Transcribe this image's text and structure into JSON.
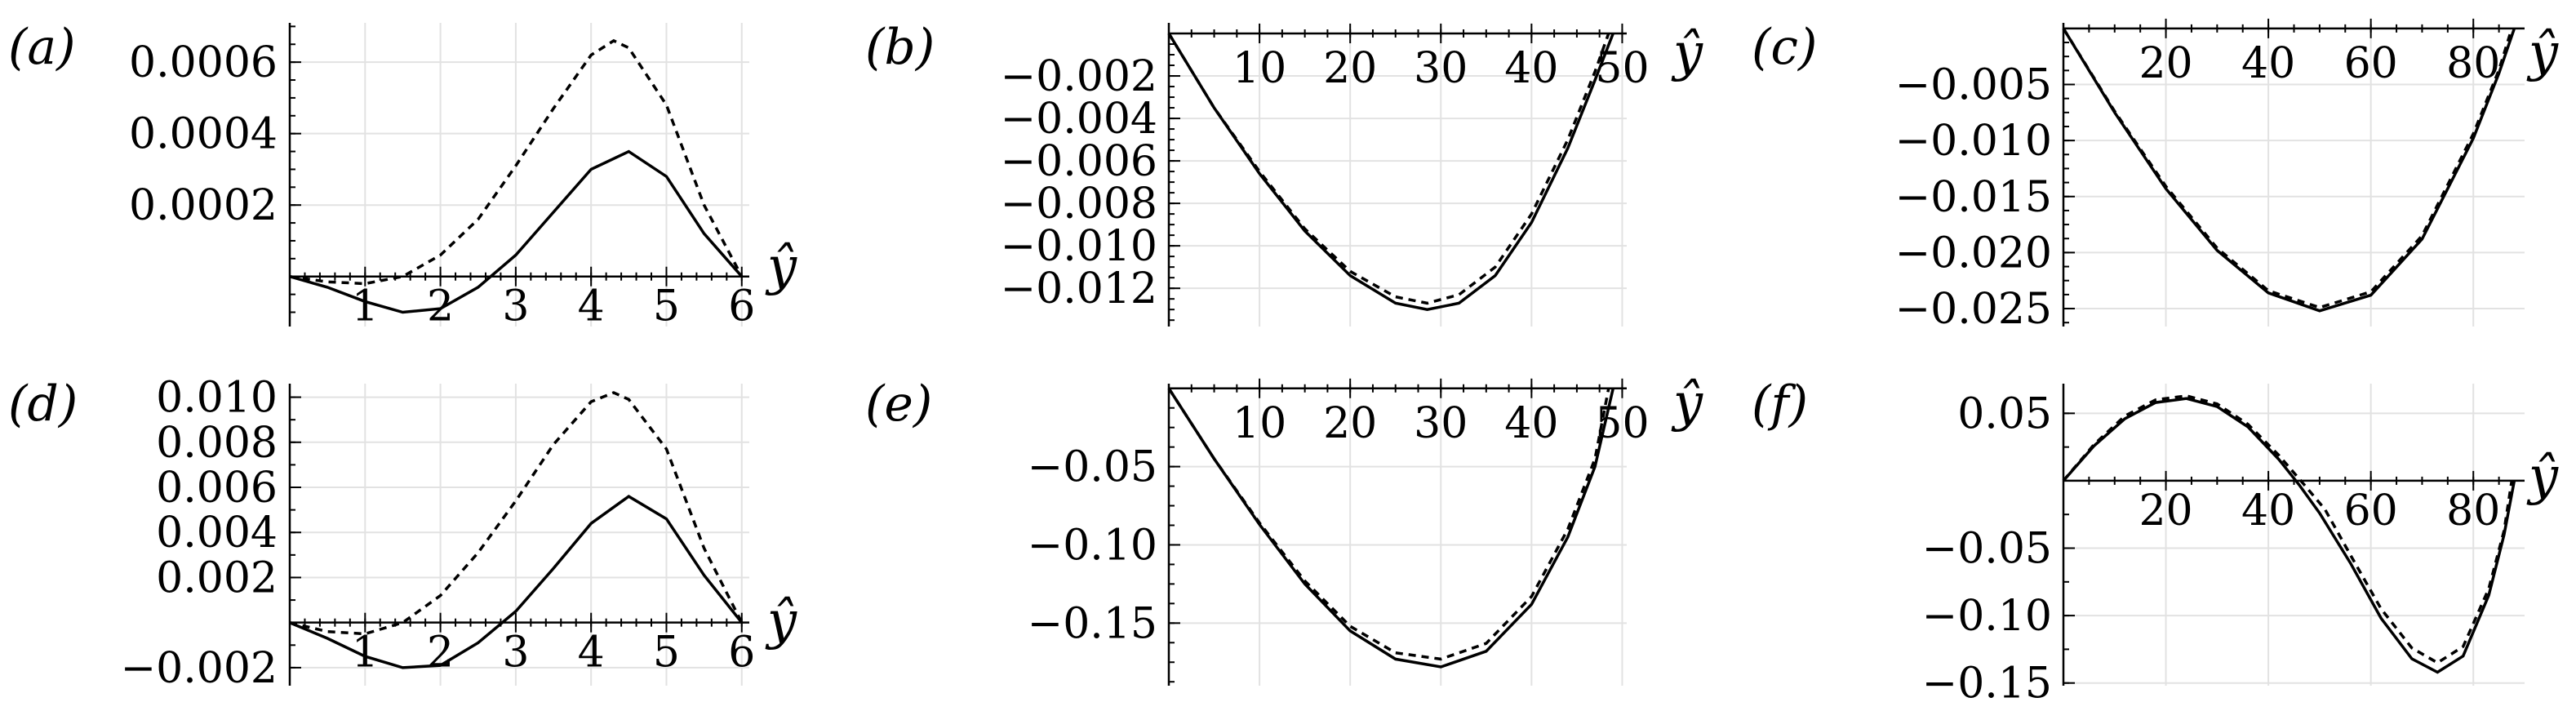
{
  "chart_data": [
    {
      "type": "line",
      "panel_label": "(a)",
      "xlabel": "ŷ",
      "x_ticks": [
        1,
        2,
        3,
        4,
        5,
        6
      ],
      "x_tick_labels": [
        "1",
        "2",
        "3",
        "4",
        "5",
        "6"
      ],
      "y_ticks": [
        0.0002,
        0.0004,
        0.0006
      ],
      "y_tick_labels": [
        "0.0002",
        "0.0004",
        "0.0006"
      ],
      "xlim": [
        0,
        6.1
      ],
      "ylim": [
        -0.00014,
        0.00071
      ],
      "grid": true,
      "series": [
        {
          "style": "solid",
          "x": [
            0,
            0.5,
            1,
            1.5,
            2,
            2.5,
            3,
            3.5,
            4,
            4.5,
            5,
            5.5,
            6
          ],
          "y": [
            0,
            -3e-05,
            -7e-05,
            -0.0001,
            -9e-05,
            -3e-05,
            6e-05,
            0.00018,
            0.0003,
            0.00035,
            0.00028,
            0.00012,
            0
          ]
        },
        {
          "style": "dashed",
          "x": [
            0,
            0.5,
            1,
            1.5,
            2,
            2.5,
            3,
            3.5,
            4,
            4.3,
            4.5,
            5,
            5.5,
            6
          ],
          "y": [
            0,
            -1.5e-05,
            -2e-05,
            0,
            6e-05,
            0.00016,
            0.00031,
            0.00047,
            0.00062,
            0.00066,
            0.00064,
            0.00048,
            0.0002,
            0
          ]
        }
      ]
    },
    {
      "type": "line",
      "panel_label": "(b)",
      "xlabel": "ŷ",
      "x_ticks": [
        10,
        20,
        30,
        40,
        50
      ],
      "x_tick_labels": [
        "10",
        "20",
        "30",
        "40",
        "50"
      ],
      "y_ticks": [
        -0.002,
        -0.004,
        -0.006,
        -0.008,
        -0.01,
        -0.012
      ],
      "y_tick_labels": [
        "−0.002",
        "−0.004",
        "−0.006",
        "−0.008",
        "−0.010",
        "−0.012"
      ],
      "xlim": [
        0,
        50.5
      ],
      "ylim": [
        -0.0138,
        0.0005
      ],
      "grid": true,
      "series": [
        {
          "style": "solid",
          "x": [
            0,
            5,
            10,
            15,
            20,
            25,
            28.5,
            32,
            36,
            40,
            44,
            47,
            49
          ],
          "y": [
            0,
            -0.0035,
            -0.0066,
            -0.0093,
            -0.0114,
            -0.0127,
            -0.013,
            -0.0127,
            -0.0114,
            -0.0089,
            -0.0054,
            -0.0022,
            0
          ]
        },
        {
          "style": "dashed",
          "x": [
            0,
            5,
            10,
            15,
            20,
            25,
            28.5,
            32,
            36,
            40,
            44,
            47,
            48.5
          ],
          "y": [
            0,
            -0.0035,
            -0.0065,
            -0.0092,
            -0.0112,
            -0.0124,
            -0.0127,
            -0.0123,
            -0.011,
            -0.0085,
            -0.005,
            -0.0018,
            0
          ]
        }
      ]
    },
    {
      "type": "line",
      "panel_label": "(c)",
      "xlabel": "ŷ",
      "x_ticks": [
        20,
        40,
        60,
        80
      ],
      "x_tick_labels": [
        "20",
        "40",
        "60",
        "80"
      ],
      "y_ticks": [
        -0.005,
        -0.01,
        -0.015,
        -0.02,
        -0.025
      ],
      "y_tick_labels": [
        "−0.005",
        "−0.010",
        "−0.015",
        "−0.020",
        "−0.025"
      ],
      "xlim": [
        0,
        90
      ],
      "ylim": [
        -0.0266,
        0.0005
      ],
      "grid": true,
      "series": [
        {
          "style": "solid",
          "x": [
            0,
            10,
            20,
            30,
            40,
            50,
            60,
            70,
            80,
            85,
            88
          ],
          "y": [
            0,
            -0.0075,
            -0.0143,
            -0.0198,
            -0.0236,
            -0.0252,
            -0.0238,
            -0.0188,
            -0.0098,
            -0.004,
            0
          ]
        },
        {
          "style": "dashed",
          "x": [
            0,
            10,
            20,
            30,
            40,
            50,
            60,
            70,
            80,
            85,
            87.5
          ],
          "y": [
            0,
            -0.0074,
            -0.0141,
            -0.0196,
            -0.0234,
            -0.0249,
            -0.0235,
            -0.0185,
            -0.0094,
            -0.0037,
            0
          ]
        }
      ]
    },
    {
      "type": "line",
      "panel_label": "(d)",
      "xlabel": "ŷ",
      "x_ticks": [
        1,
        2,
        3,
        4,
        5,
        6
      ],
      "x_tick_labels": [
        "1",
        "2",
        "3",
        "4",
        "5",
        "6"
      ],
      "y_ticks": [
        -0.002,
        0.002,
        0.004,
        0.006,
        0.008,
        0.01
      ],
      "y_tick_labels": [
        "−0.002",
        "0.002",
        "0.004",
        "0.006",
        "0.008",
        "0.010"
      ],
      "xlim": [
        0,
        6.1
      ],
      "ylim": [
        -0.0028,
        0.0106
      ],
      "grid": true,
      "series": [
        {
          "style": "solid",
          "x": [
            0,
            0.5,
            1,
            1.5,
            2,
            2.5,
            3,
            3.5,
            4,
            4.5,
            5,
            5.5,
            6
          ],
          "y": [
            0,
            -0.0007,
            -0.0015,
            -0.002,
            -0.0019,
            -0.0009,
            0.0005,
            0.0024,
            0.0044,
            0.0056,
            0.0046,
            0.0021,
            0
          ]
        },
        {
          "style": "dashed",
          "x": [
            0,
            0.5,
            1,
            1.5,
            2,
            2.5,
            3,
            3.5,
            4,
            4.3,
            4.5,
            5,
            5.5,
            6
          ],
          "y": [
            0,
            -0.0004,
            -0.0005,
            0,
            0.0012,
            0.0031,
            0.0054,
            0.0079,
            0.0098,
            0.0102,
            0.0099,
            0.0077,
            0.0033,
            0
          ]
        }
      ]
    },
    {
      "type": "line",
      "panel_label": "(e)",
      "xlabel": "ŷ",
      "x_ticks": [
        10,
        20,
        30,
        40,
        50
      ],
      "x_tick_labels": [
        "10",
        "20",
        "30",
        "40",
        "50"
      ],
      "y_ticks": [
        -0.05,
        -0.1,
        -0.15
      ],
      "y_tick_labels": [
        "−0.05",
        "−0.10",
        "−0.15"
      ],
      "xlim": [
        0,
        50.5
      ],
      "ylim": [
        -0.19,
        0.003
      ],
      "grid": true,
      "series": [
        {
          "style": "solid",
          "x": [
            0,
            5,
            10,
            15,
            20,
            25,
            30,
            35,
            40,
            44,
            47,
            49
          ],
          "y": [
            0,
            -0.045,
            -0.087,
            -0.125,
            -0.155,
            -0.173,
            -0.178,
            -0.168,
            -0.138,
            -0.095,
            -0.05,
            0
          ]
        },
        {
          "style": "dashed",
          "x": [
            0,
            5,
            10,
            15,
            20,
            25,
            30,
            35,
            40,
            44,
            47,
            48.5
          ],
          "y": [
            0,
            -0.045,
            -0.086,
            -0.123,
            -0.152,
            -0.169,
            -0.173,
            -0.163,
            -0.133,
            -0.09,
            -0.045,
            0
          ]
        }
      ]
    },
    {
      "type": "line",
      "panel_label": "(f)",
      "xlabel": "ŷ",
      "x_ticks": [
        20,
        40,
        60,
        80
      ],
      "x_tick_labels": [
        "20",
        "40",
        "60",
        "80"
      ],
      "y_ticks": [
        0.05,
        -0.05,
        -0.1,
        -0.15
      ],
      "y_tick_labels": [
        "0.05",
        "−0.05",
        "−0.10",
        "−0.15"
      ],
      "xlim": [
        0,
        90
      ],
      "ylim": [
        -0.152,
        0.072
      ],
      "grid": true,
      "series": [
        {
          "style": "solid",
          "x": [
            0,
            6,
            12,
            18,
            24,
            30,
            36,
            42,
            46,
            50,
            56,
            62,
            68,
            73,
            78,
            83,
            86,
            88
          ],
          "y": [
            0,
            0.026,
            0.046,
            0.058,
            0.061,
            0.055,
            0.04,
            0.016,
            -0.003,
            -0.024,
            -0.061,
            -0.102,
            -0.132,
            -0.142,
            -0.13,
            -0.085,
            -0.04,
            0
          ]
        },
        {
          "style": "dashed",
          "x": [
            0,
            6,
            12,
            18,
            24,
            30,
            36,
            42,
            47,
            51,
            56,
            62,
            68,
            73,
            78,
            83,
            86,
            87.5
          ],
          "y": [
            0,
            0.027,
            0.048,
            0.06,
            0.063,
            0.057,
            0.042,
            0.019,
            -0.003,
            -0.021,
            -0.055,
            -0.095,
            -0.124,
            -0.135,
            -0.123,
            -0.08,
            -0.037,
            0
          ]
        }
      ]
    }
  ]
}
